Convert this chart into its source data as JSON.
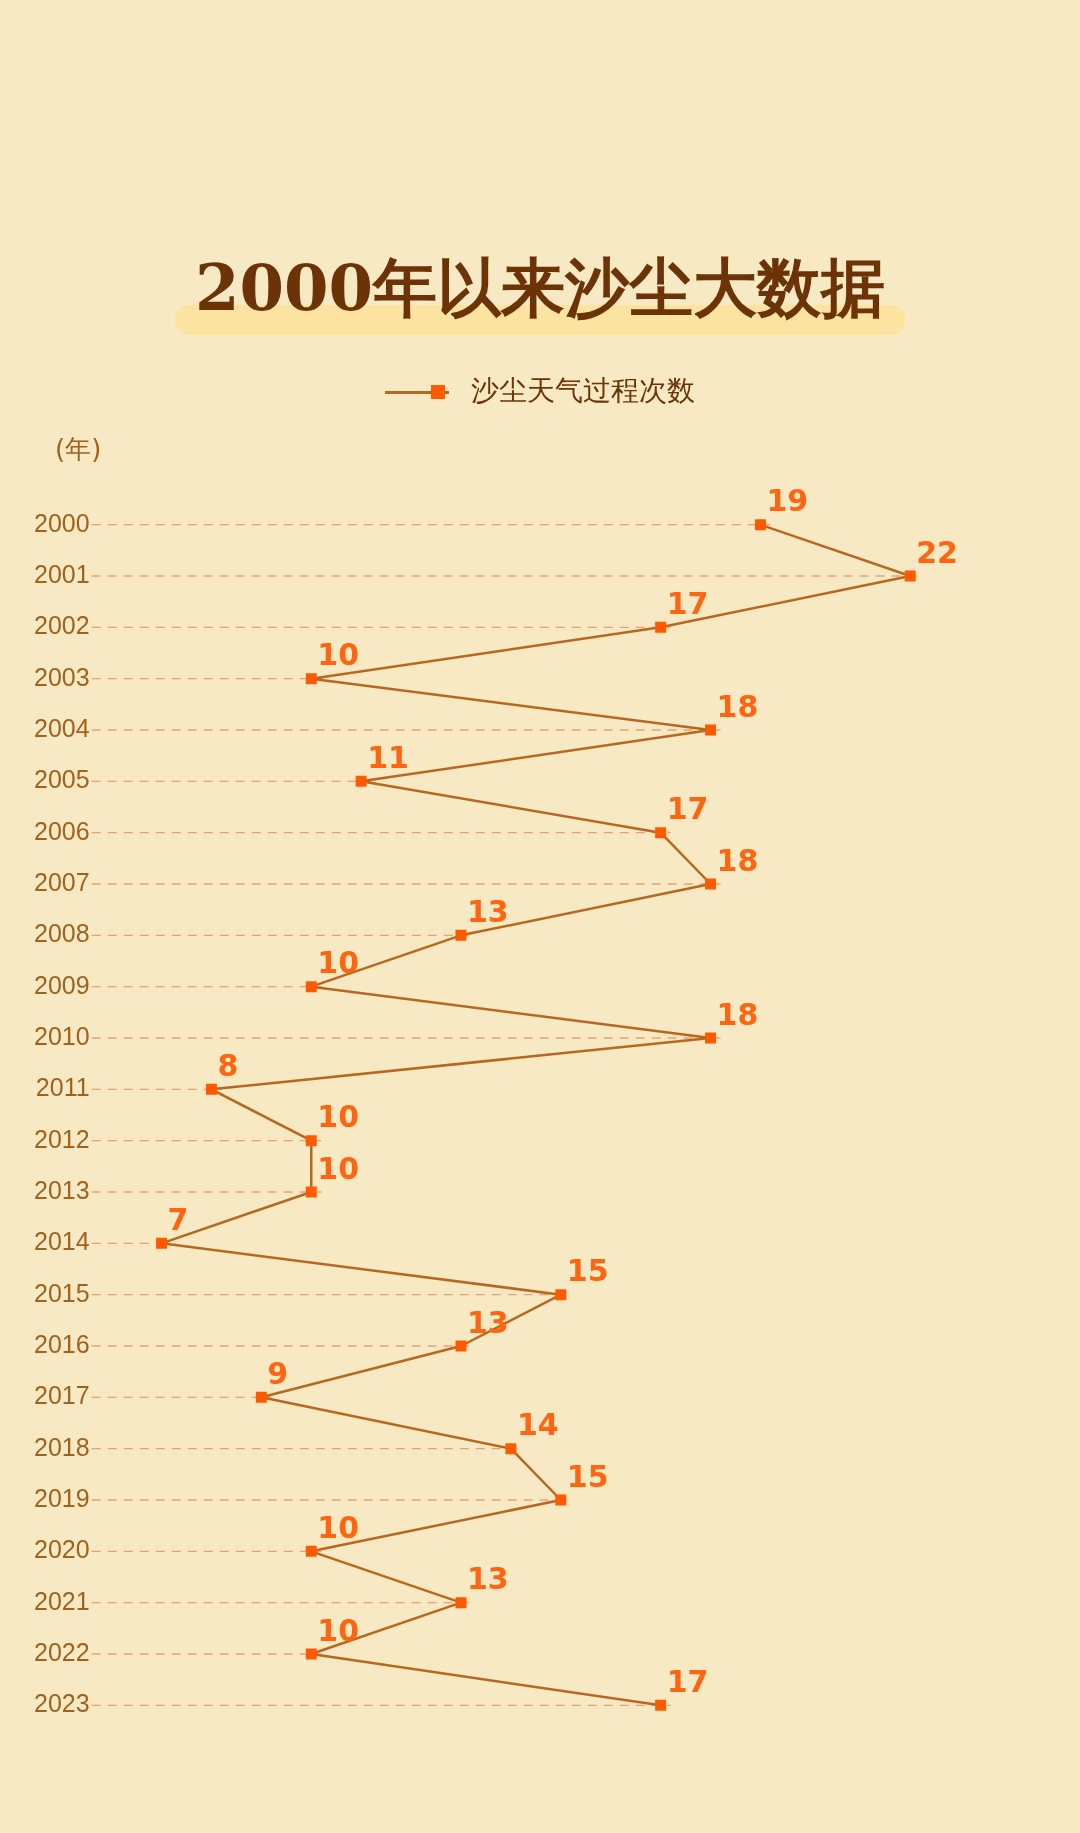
{
  "chart_data": {
    "type": "line",
    "title": "2000年以来沙尘大数据",
    "ylabel": "(年)",
    "orientation": "horizontal",
    "categories": [
      "2000",
      "2001",
      "2002",
      "2003",
      "2004",
      "2005",
      "2006",
      "2007",
      "2008",
      "2009",
      "2010",
      "2011",
      "2012",
      "2013",
      "2014",
      "2015",
      "2016",
      "2017",
      "2018",
      "2019",
      "2020",
      "2021",
      "2022",
      "2023"
    ],
    "series": [
      {
        "name": "沙尘天气过程次数",
        "color": "#b8681e",
        "values": [
          19,
          22,
          17,
          10,
          18,
          11,
          17,
          18,
          13,
          10,
          18,
          8,
          10,
          10,
          7,
          15,
          13,
          9,
          14,
          15,
          10,
          13,
          10,
          17
        ]
      }
    ],
    "data_labels": true,
    "marker": "square",
    "line_style": "solid",
    "grid": "y",
    "legend": "top",
    "tick_labels": "y"
  }
}
